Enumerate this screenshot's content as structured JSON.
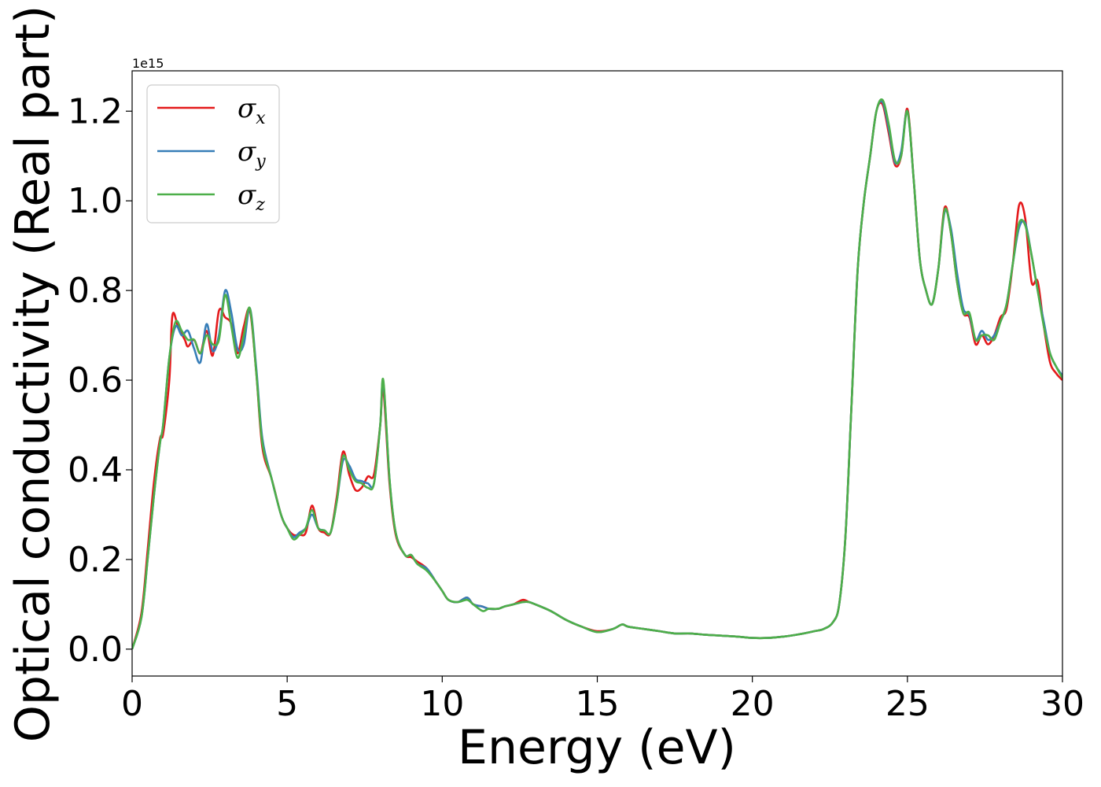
{
  "chart_data": {
    "type": "line",
    "title": "",
    "xlabel": "Energy (eV)",
    "ylabel": "Optical conductivity (Real part)",
    "y_offset_text": "1e15",
    "xlim": [
      0,
      30
    ],
    "ylim": [
      -0.06,
      1.29
    ],
    "xticks": [
      0,
      5,
      10,
      15,
      20,
      25,
      30
    ],
    "xtick_labels": [
      "0",
      "5",
      "10",
      "15",
      "20",
      "25",
      "30"
    ],
    "yticks": [
      0.0,
      0.2,
      0.4,
      0.6,
      0.8,
      1.0,
      1.2
    ],
    "ytick_labels": [
      "0.0",
      "0.2",
      "0.4",
      "0.6",
      "0.8",
      "1.0",
      "1.2"
    ],
    "grid": false,
    "legend_position": "top-left",
    "series": [
      {
        "name": "σx",
        "name_base": "σ",
        "name_sub": "x",
        "color": "#e41a1c",
        "x": [
          0,
          0.3,
          0.5,
          0.7,
          0.9,
          1.0,
          1.2,
          1.3,
          1.5,
          1.7,
          1.8,
          2.0,
          2.2,
          2.4,
          2.6,
          2.8,
          3.0,
          3.2,
          3.4,
          3.6,
          3.8,
          4.0,
          4.2,
          4.5,
          4.8,
          5.0,
          5.2,
          5.4,
          5.6,
          5.8,
          6.0,
          6.2,
          6.4,
          6.6,
          6.8,
          7.0,
          7.2,
          7.4,
          7.6,
          7.8,
          8.0,
          8.1,
          8.3,
          8.5,
          8.8,
          9.0,
          9.2,
          9.5,
          9.8,
          10.0,
          10.2,
          10.5,
          10.8,
          11.0,
          11.3,
          11.5,
          11.8,
          12.0,
          12.3,
          12.6,
          12.8,
          13.0,
          13.5,
          14.0,
          14.5,
          15.0,
          15.5,
          15.8,
          16.0,
          16.5,
          17.0,
          17.5,
          18.0,
          18.5,
          19.0,
          19.5,
          20.0,
          20.5,
          21.0,
          21.5,
          22.0,
          22.3,
          22.6,
          22.8,
          23.0,
          23.2,
          23.4,
          23.6,
          23.8,
          24.0,
          24.2,
          24.4,
          24.6,
          24.8,
          25.0,
          25.2,
          25.4,
          25.6,
          25.8,
          26.0,
          26.2,
          26.4,
          26.6,
          26.8,
          27.0,
          27.2,
          27.4,
          27.6,
          27.8,
          28.0,
          28.2,
          28.4,
          28.6,
          28.8,
          29.0,
          29.2,
          29.4,
          29.6,
          29.8,
          30.0
        ],
        "y": [
          0.0,
          0.08,
          0.22,
          0.37,
          0.47,
          0.48,
          0.6,
          0.745,
          0.715,
          0.69,
          0.675,
          0.69,
          0.66,
          0.71,
          0.655,
          0.755,
          0.74,
          0.725,
          0.66,
          0.72,
          0.755,
          0.62,
          0.45,
          0.38,
          0.3,
          0.27,
          0.255,
          0.255,
          0.26,
          0.32,
          0.27,
          0.26,
          0.26,
          0.34,
          0.44,
          0.39,
          0.355,
          0.36,
          0.385,
          0.39,
          0.5,
          0.58,
          0.37,
          0.255,
          0.21,
          0.205,
          0.195,
          0.18,
          0.15,
          0.13,
          0.11,
          0.105,
          0.115,
          0.1,
          0.095,
          0.09,
          0.09,
          0.095,
          0.1,
          0.11,
          0.105,
          0.1,
          0.085,
          0.065,
          0.05,
          0.04,
          0.045,
          0.055,
          0.05,
          0.045,
          0.04,
          0.035,
          0.035,
          0.032,
          0.03,
          0.028,
          0.025,
          0.025,
          0.028,
          0.033,
          0.04,
          0.045,
          0.06,
          0.1,
          0.25,
          0.55,
          0.85,
          1.0,
          1.1,
          1.2,
          1.215,
          1.15,
          1.08,
          1.1,
          1.205,
          1.05,
          0.87,
          0.8,
          0.77,
          0.85,
          0.985,
          0.93,
          0.82,
          0.75,
          0.74,
          0.68,
          0.7,
          0.68,
          0.7,
          0.74,
          0.76,
          0.86,
          0.99,
          0.96,
          0.82,
          0.82,
          0.72,
          0.64,
          0.615,
          0.6
        ]
      },
      {
        "name": "σy",
        "name_base": "σ",
        "name_sub": "y",
        "color": "#377eb8",
        "x": [
          0,
          0.3,
          0.5,
          0.7,
          0.9,
          1.0,
          1.2,
          1.4,
          1.6,
          1.8,
          2.0,
          2.2,
          2.4,
          2.6,
          2.8,
          3.0,
          3.2,
          3.4,
          3.6,
          3.8,
          4.0,
          4.2,
          4.5,
          4.8,
          5.0,
          5.2,
          5.4,
          5.6,
          5.8,
          6.0,
          6.2,
          6.4,
          6.6,
          6.8,
          7.0,
          7.2,
          7.4,
          7.6,
          7.8,
          8.0,
          8.1,
          8.3,
          8.5,
          8.8,
          9.0,
          9.2,
          9.5,
          9.8,
          10.0,
          10.2,
          10.5,
          10.8,
          11.0,
          11.3,
          11.5,
          11.8,
          12.0,
          12.3,
          12.6,
          12.8,
          13.0,
          13.5,
          14.0,
          14.5,
          15.0,
          15.5,
          15.8,
          16.0,
          16.5,
          17.0,
          17.5,
          18.0,
          18.5,
          19.0,
          19.5,
          20.0,
          20.5,
          21.0,
          21.5,
          22.0,
          22.3,
          22.6,
          22.8,
          23.0,
          23.2,
          23.4,
          23.6,
          23.8,
          24.0,
          24.2,
          24.4,
          24.6,
          24.8,
          25.0,
          25.2,
          25.4,
          25.6,
          25.8,
          26.0,
          26.2,
          26.4,
          26.6,
          26.8,
          27.0,
          27.2,
          27.4,
          27.6,
          27.8,
          28.0,
          28.2,
          28.4,
          28.6,
          28.8,
          29.0,
          29.2,
          29.4,
          29.6,
          29.8,
          30.0
        ],
        "y": [
          0.0,
          0.07,
          0.2,
          0.34,
          0.46,
          0.5,
          0.65,
          0.72,
          0.7,
          0.71,
          0.67,
          0.64,
          0.725,
          0.665,
          0.7,
          0.8,
          0.75,
          0.67,
          0.68,
          0.76,
          0.63,
          0.47,
          0.38,
          0.3,
          0.27,
          0.25,
          0.26,
          0.27,
          0.3,
          0.27,
          0.265,
          0.26,
          0.33,
          0.42,
          0.41,
          0.38,
          0.375,
          0.37,
          0.37,
          0.5,
          0.595,
          0.38,
          0.26,
          0.21,
          0.21,
          0.19,
          0.18,
          0.15,
          0.13,
          0.11,
          0.105,
          0.115,
          0.1,
          0.095,
          0.09,
          0.09,
          0.095,
          0.1,
          0.105,
          0.105,
          0.1,
          0.085,
          0.065,
          0.05,
          0.038,
          0.045,
          0.055,
          0.05,
          0.045,
          0.04,
          0.035,
          0.035,
          0.032,
          0.03,
          0.028,
          0.025,
          0.025,
          0.028,
          0.033,
          0.04,
          0.045,
          0.06,
          0.1,
          0.25,
          0.55,
          0.85,
          1.0,
          1.1,
          1.2,
          1.22,
          1.16,
          1.085,
          1.11,
          1.2,
          1.05,
          0.87,
          0.8,
          0.77,
          0.85,
          0.975,
          0.94,
          0.84,
          0.76,
          0.745,
          0.69,
          0.71,
          0.69,
          0.7,
          0.73,
          0.77,
          0.86,
          0.94,
          0.95,
          0.88,
          0.8,
          0.73,
          0.66,
          0.63,
          0.61
        ]
      },
      {
        "name": "σz",
        "name_base": "σ",
        "name_sub": "z",
        "color": "#4daf4a",
        "x": [
          0,
          0.3,
          0.5,
          0.7,
          0.9,
          1.0,
          1.2,
          1.4,
          1.6,
          1.8,
          2.0,
          2.2,
          2.4,
          2.6,
          2.8,
          3.0,
          3.2,
          3.4,
          3.6,
          3.8,
          4.0,
          4.2,
          4.5,
          4.8,
          5.0,
          5.2,
          5.4,
          5.6,
          5.8,
          6.0,
          6.2,
          6.4,
          6.6,
          6.8,
          7.0,
          7.2,
          7.4,
          7.6,
          7.8,
          8.0,
          8.1,
          8.3,
          8.5,
          8.8,
          9.0,
          9.2,
          9.5,
          9.8,
          10.0,
          10.2,
          10.5,
          10.8,
          11.0,
          11.3,
          11.5,
          11.8,
          12.0,
          12.3,
          12.6,
          12.8,
          13.0,
          13.5,
          14.0,
          14.5,
          15.0,
          15.5,
          15.8,
          16.0,
          16.5,
          17.0,
          17.5,
          18.0,
          18.5,
          19.0,
          19.5,
          20.0,
          20.5,
          21.0,
          21.5,
          22.0,
          22.3,
          22.6,
          22.8,
          23.0,
          23.2,
          23.4,
          23.6,
          23.8,
          24.0,
          24.2,
          24.4,
          24.6,
          24.8,
          25.0,
          25.2,
          25.4,
          25.6,
          25.8,
          26.0,
          26.2,
          26.4,
          26.6,
          26.8,
          27.0,
          27.2,
          27.4,
          27.6,
          27.8,
          28.0,
          28.2,
          28.4,
          28.6,
          28.8,
          29.0,
          29.2,
          29.4,
          29.6,
          29.8,
          30.0
        ],
        "y": [
          0.0,
          0.07,
          0.2,
          0.34,
          0.46,
          0.5,
          0.65,
          0.73,
          0.71,
          0.69,
          0.69,
          0.66,
          0.7,
          0.68,
          0.69,
          0.79,
          0.72,
          0.65,
          0.7,
          0.76,
          0.62,
          0.46,
          0.38,
          0.3,
          0.27,
          0.245,
          0.255,
          0.27,
          0.31,
          0.27,
          0.265,
          0.26,
          0.33,
          0.43,
          0.4,
          0.375,
          0.37,
          0.36,
          0.37,
          0.5,
          0.6,
          0.38,
          0.26,
          0.21,
          0.21,
          0.19,
          0.175,
          0.15,
          0.13,
          0.11,
          0.105,
          0.11,
          0.1,
          0.085,
          0.09,
          0.09,
          0.095,
          0.1,
          0.105,
          0.105,
          0.1,
          0.085,
          0.065,
          0.05,
          0.038,
          0.045,
          0.055,
          0.05,
          0.045,
          0.04,
          0.035,
          0.035,
          0.032,
          0.03,
          0.028,
          0.025,
          0.025,
          0.028,
          0.033,
          0.04,
          0.045,
          0.06,
          0.1,
          0.25,
          0.55,
          0.85,
          1.0,
          1.1,
          1.2,
          1.225,
          1.17,
          1.09,
          1.1,
          1.2,
          1.05,
          0.87,
          0.8,
          0.77,
          0.85,
          0.98,
          0.93,
          0.82,
          0.75,
          0.75,
          0.69,
          0.7,
          0.7,
          0.69,
          0.73,
          0.77,
          0.86,
          0.95,
          0.945,
          0.88,
          0.8,
          0.72,
          0.66,
          0.63,
          0.605
        ]
      }
    ]
  }
}
